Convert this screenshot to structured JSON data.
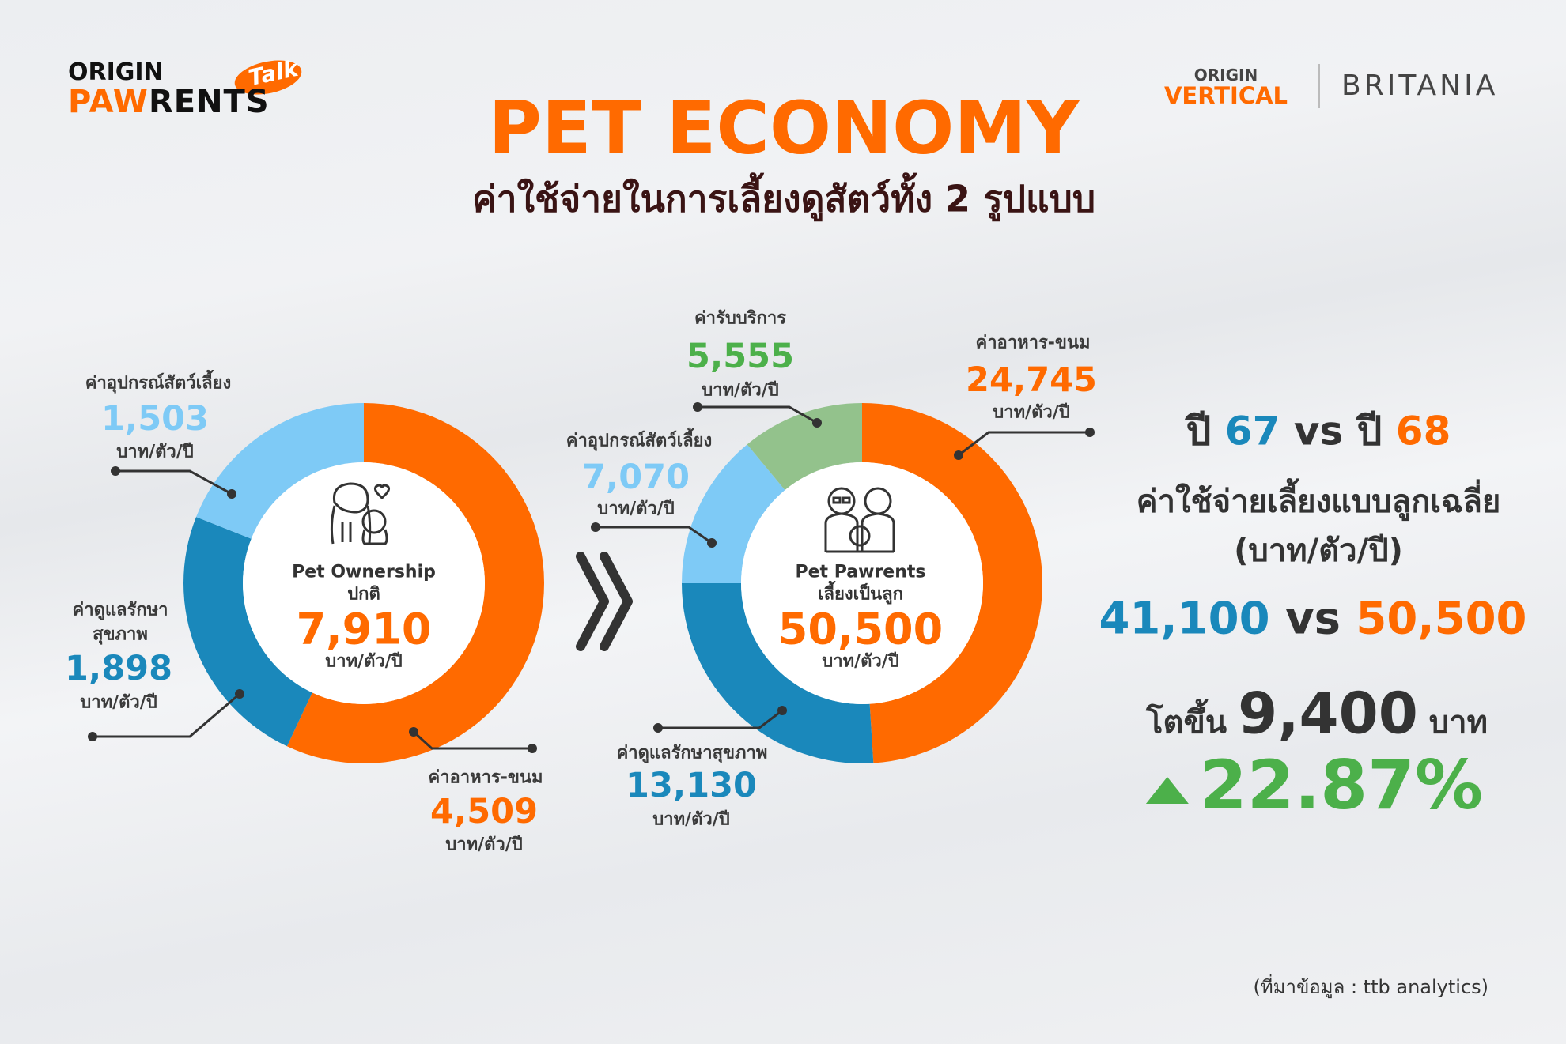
{
  "header": {
    "logo_left_line1": "ORIGIN",
    "logo_left_line2a": "PAW",
    "logo_left_line2b": "RENTS",
    "logo_left_badge": "Talk",
    "logo_right_1_line1": "ORIGIN",
    "logo_right_1_line2": "VERTICAL",
    "logo_right_2": "BRITANIA",
    "title": "PET ECONOMY",
    "subtitle": "ค่าใช้จ่ายในการเลี้ยงดูสัตว์ทั้ง 2 รูปแบบ"
  },
  "colors": {
    "orange": "#ff6a00",
    "dark_blue": "#1a88bb",
    "light_blue": "#7ecaf6",
    "green_slice": "#93c28c",
    "green_text": "#4cb04a",
    "dark": "#333333"
  },
  "unit": "บาท/ตัว/ปี",
  "chart_data": [
    {
      "type": "pie",
      "style": "donut",
      "center_title": "Pet Ownership",
      "center_subtitle": "ปกติ",
      "total": "7,910",
      "total_value": 7910,
      "slices": [
        {
          "label": "ค่าอาหาร-ขนม",
          "value": 4509,
          "display": "4,509",
          "color": "#ff6a00"
        },
        {
          "label": "ค่าดูแลรักษา",
          "label2": "สุขภาพ",
          "value": 1898,
          "display": "1,898",
          "color": "#1a88bb"
        },
        {
          "label": "ค่าอุปกรณ์สัตว์เลี้ยง",
          "value": 1503,
          "display": "1,503",
          "color": "#7ecaf6"
        }
      ]
    },
    {
      "type": "pie",
      "style": "donut",
      "center_title": "Pet Pawrents",
      "center_subtitle": "เลี้ยงเป็นลูก",
      "total": "50,500",
      "total_value": 50500,
      "slices": [
        {
          "label": "ค่าอาหาร-ขนม",
          "value": 24745,
          "display": "24,745",
          "color": "#ff6a00"
        },
        {
          "label": "ค่าดูแลรักษาสุขภาพ",
          "value": 13130,
          "display": "13,130",
          "color": "#1a88bb"
        },
        {
          "label": "ค่าอุปกรณ์สัตว์เลี้ยง",
          "value": 7070,
          "display": "7,070",
          "color": "#7ecaf6"
        },
        {
          "label": "ค่ารับบริการ",
          "value": 5555,
          "display": "5,555",
          "color": "#93c28c"
        }
      ]
    }
  ],
  "summary": {
    "year_prefix": "ปี",
    "year_a": "67",
    "vs": "vs",
    "year_b": "68",
    "heading": "ค่าใช้จ่ายเลี้ยงแบบลูกเฉลี่ย",
    "unit": "(บาท/ตัว/ปี)",
    "value_a": "41,100",
    "value_b": "50,500",
    "growth_prefix": "โตขึ้น",
    "growth_amount": "9,400",
    "growth_unit": "บาท",
    "growth_percent": "22.87%",
    "trend_icon": "triangle-up-icon"
  },
  "footnote": "(ที่มาข้อมูล : ttb analytics)"
}
